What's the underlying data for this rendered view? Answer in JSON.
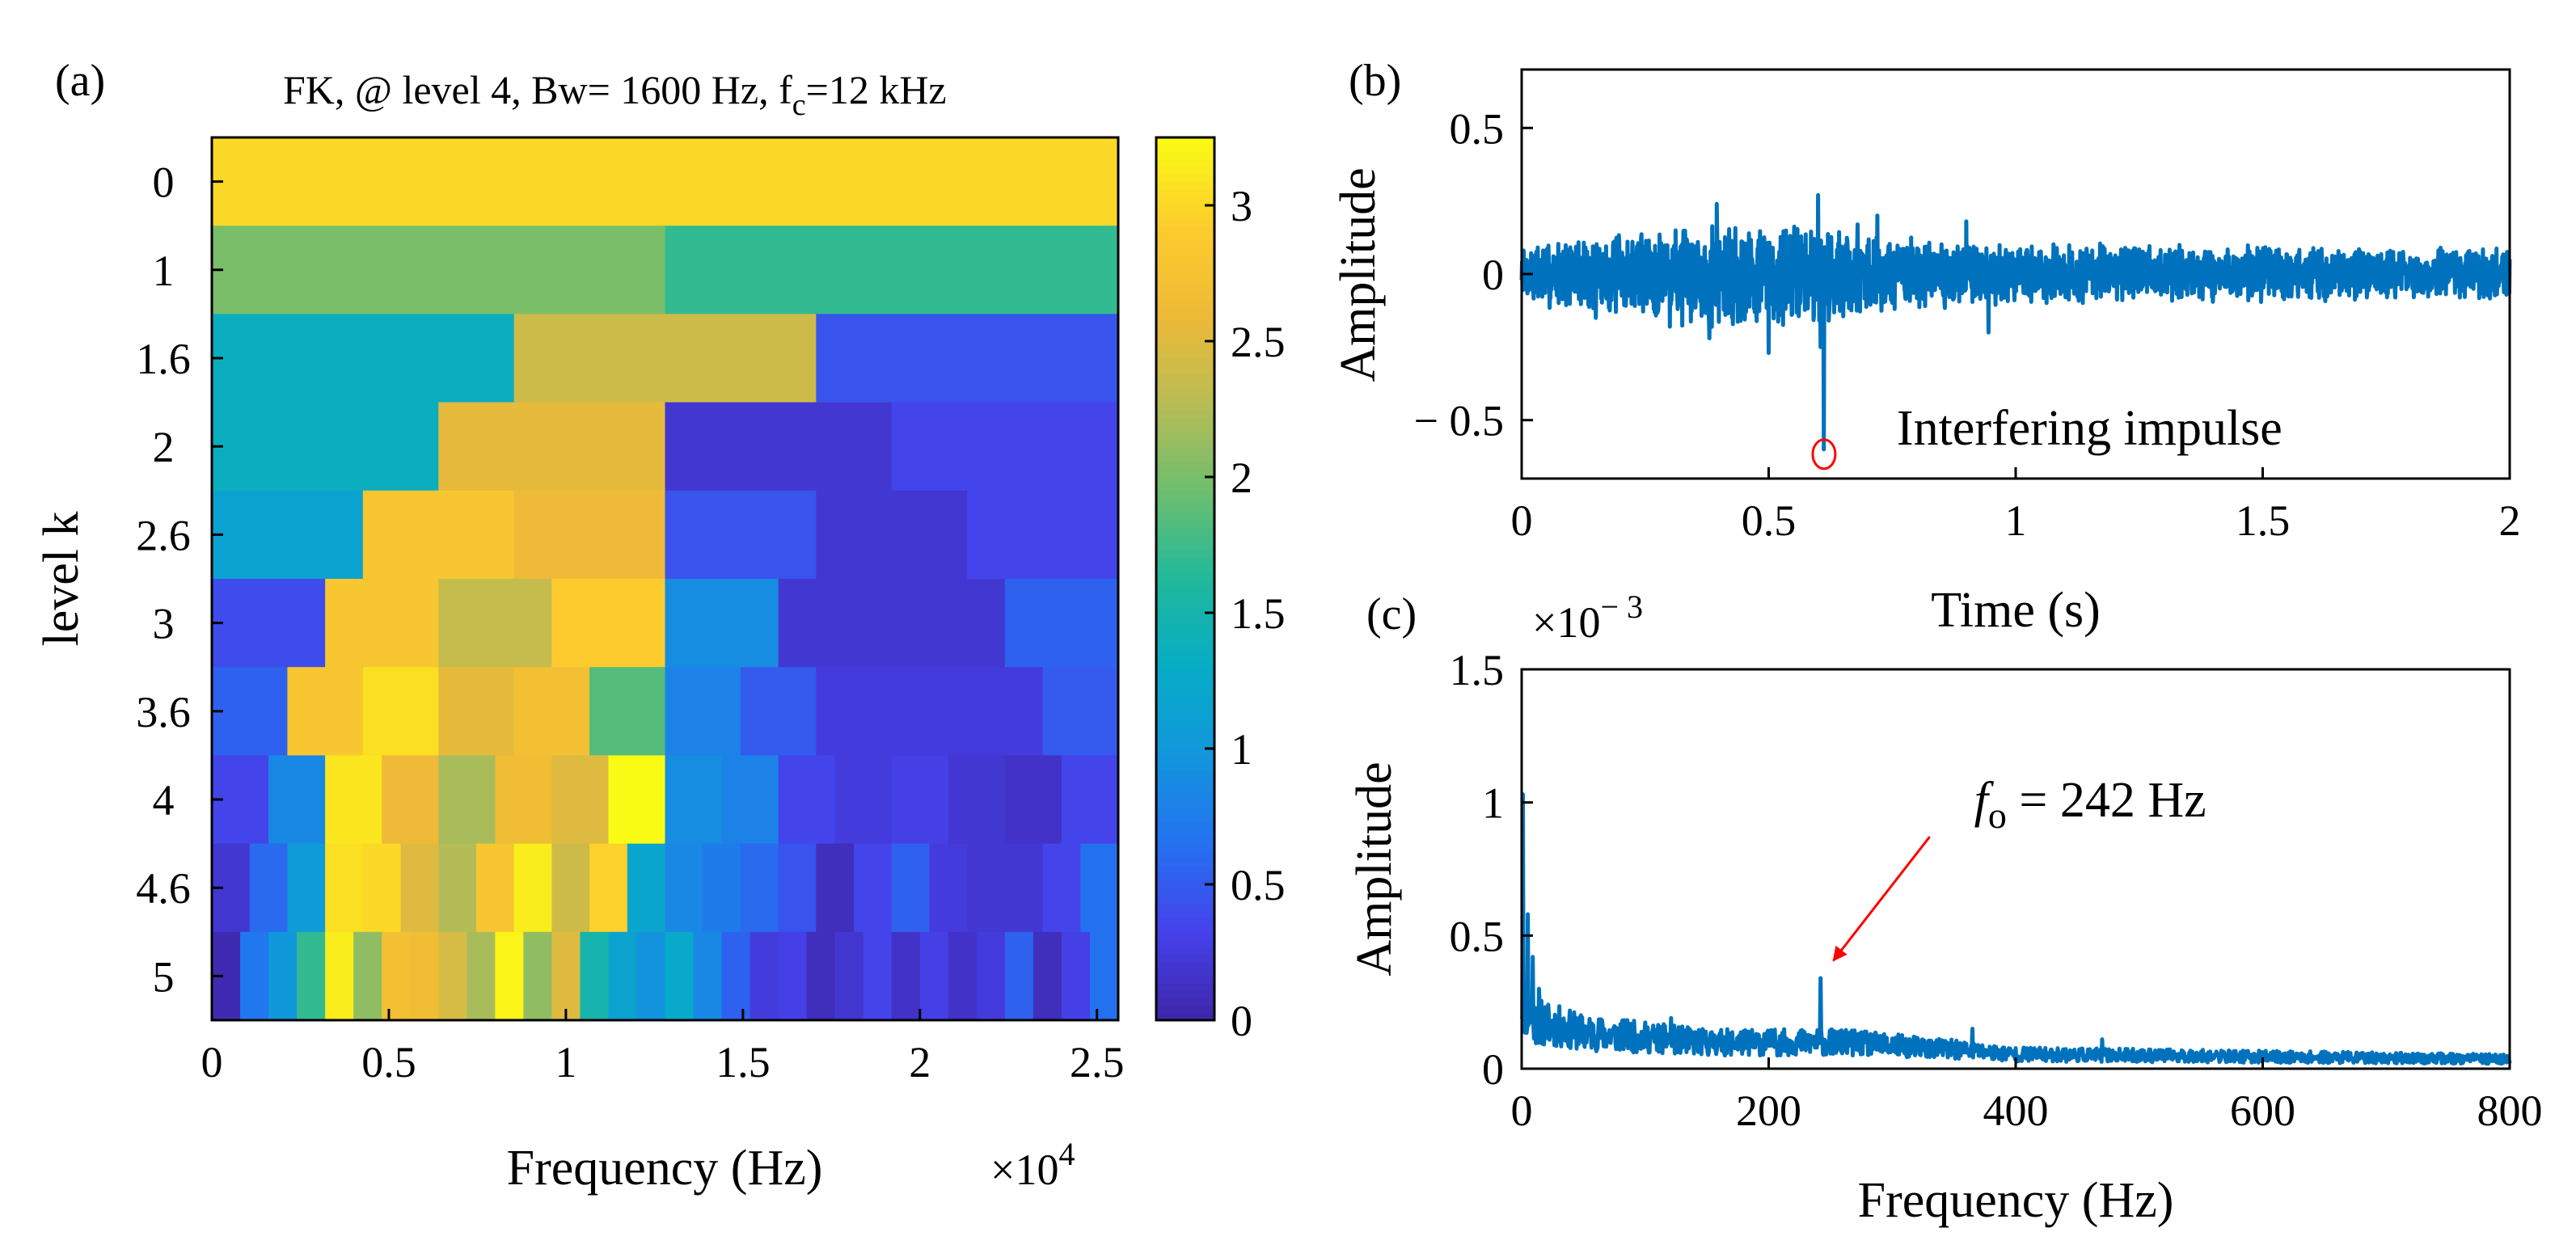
{
  "figure": {
    "colors": {
      "signal": "#0072BD",
      "annotation_red": "#ff0000",
      "axis": "#000000"
    }
  },
  "chart_data": [
    {
      "id": "a",
      "panel_label": "(a)",
      "type": "heatmap",
      "title_prefix": "FK, @ level 4, Bw= 1600 Hz, f",
      "title_subscript": "c",
      "title_suffix": "=12 kHz",
      "xlabel": "Frequency (Hz)",
      "xmultiplier": "×10",
      "xmultiplier_exp": "4",
      "ylabel": "level k",
      "xlim": [
        0,
        2.56
      ],
      "xticks": [
        0,
        0.5,
        1,
        1.5,
        2,
        2.5
      ],
      "xtick_labels": [
        "0",
        "0.5",
        "1",
        "1.5",
        "2",
        "2.5"
      ],
      "levels": [
        "0",
        "1",
        "1.6",
        "2",
        "2.6",
        "3",
        "3.6",
        "4",
        "4.6",
        "5"
      ],
      "colorbar": {
        "min": 0,
        "max": 3.25,
        "ticks": [
          0,
          0.5,
          1,
          1.5,
          2,
          2.5,
          3
        ],
        "tick_labels": [
          "0",
          "0.5",
          "1",
          "1.5",
          "2",
          "2.5",
          "3"
        ]
      },
      "rows": [
        [
          3.0
        ],
        [
          2.0,
          1.7
        ],
        [
          1.35,
          2.4,
          0.45
        ],
        [
          1.35,
          2.55,
          0.2,
          0.35
        ],
        [
          1.15,
          2.8,
          2.6,
          0.45,
          0.2,
          0.35
        ],
        [
          0.4,
          2.8,
          2.35,
          2.9,
          0.9,
          0.2,
          0.2,
          0.55
        ],
        [
          0.55,
          2.8,
          3.05,
          2.55,
          2.7,
          1.85,
          0.8,
          0.5,
          0.25,
          0.25,
          0.25,
          0.5
        ],
        [
          0.35,
          0.85,
          3.1,
          2.6,
          2.2,
          2.65,
          2.5,
          3.25,
          0.9,
          0.8,
          0.35,
          0.25,
          0.3,
          0.2,
          0.15,
          0.35
        ],
        [
          0.2,
          0.6,
          1.05,
          3.05,
          3.0,
          2.5,
          2.25,
          2.8,
          3.15,
          2.4,
          2.95,
          1.2,
          0.85,
          0.75,
          0.6,
          0.45,
          0.1,
          0.35,
          0.55,
          0.25,
          0.2,
          0.2,
          0.35,
          0.65
        ],
        [
          0.05,
          0.7,
          1.0,
          1.7,
          3.15,
          2.1,
          2.7,
          2.65,
          2.45,
          2.2,
          3.2,
          2.1,
          2.5,
          1.5,
          1.15,
          0.95,
          1.25,
          0.85,
          0.55,
          0.25,
          0.3,
          0.1,
          0.2,
          0.35,
          0.15,
          0.3,
          0.15,
          0.25,
          0.55,
          0.1,
          0.3,
          0.65
        ]
      ]
    },
    {
      "id": "b",
      "panel_label": "(b)",
      "type": "line",
      "xlabel": "Time (s)",
      "ylabel": "Amplitude",
      "xlim": [
        0,
        2
      ],
      "ylim": [
        -0.7,
        0.7
      ],
      "xticks": [
        0,
        0.5,
        1,
        1.5,
        2
      ],
      "xtick_labels": [
        "0",
        "0.5",
        "1",
        "1.5",
        "2"
      ],
      "yticks": [
        -0.5,
        0,
        0.5
      ],
      "ytick_labels": [
        "− 0.5",
        "0",
        "0.5"
      ],
      "noise_envelope": [
        {
          "t": 0.0,
          "amp": 0.11
        },
        {
          "t": 0.2,
          "amp": 0.15
        },
        {
          "t": 0.4,
          "amp": 0.2
        },
        {
          "t": 0.6,
          "amp": 0.18
        },
        {
          "t": 0.8,
          "amp": 0.13
        },
        {
          "t": 1.0,
          "amp": 0.11
        },
        {
          "t": 1.5,
          "amp": 0.1
        },
        {
          "t": 2.0,
          "amp": 0.09
        }
      ],
      "spikes": [
        {
          "t": 0.612,
          "value": -0.6
        },
        {
          "t": 0.6,
          "value": 0.27
        },
        {
          "t": 0.605,
          "value": -0.25
        },
        {
          "t": 0.395,
          "value": 0.24
        },
        {
          "t": 0.38,
          "value": -0.22
        },
        {
          "t": 0.5,
          "value": -0.27
        },
        {
          "t": 0.945,
          "value": -0.2
        },
        {
          "t": 0.9,
          "value": 0.18
        },
        {
          "t": 0.72,
          "value": 0.2
        },
        {
          "t": 0.68,
          "value": 0.17
        },
        {
          "t": 0.3,
          "value": -0.18
        },
        {
          "t": 0.15,
          "value": -0.15
        }
      ],
      "marker": {
        "t": 0.612,
        "value": -0.6
      },
      "annotation": "Interfering impulse"
    },
    {
      "id": "c",
      "panel_label": "(c)",
      "type": "line",
      "xlabel": "Frequency (Hz)",
      "ylabel": "Amplitude",
      "ymultiplier": "×10",
      "ymultiplier_exp": "− 3",
      "xlim": [
        0,
        800
      ],
      "ylim": [
        0,
        1.5
      ],
      "xticks": [
        0,
        200,
        400,
        600,
        800
      ],
      "xtick_labels": [
        "0",
        "200",
        "400",
        "600",
        "800"
      ],
      "yticks": [
        0,
        0.5,
        1,
        1.5
      ],
      "ytick_labels": [
        "0",
        "0.5",
        "1",
        "1.5"
      ],
      "baseline": [
        {
          "f": 0,
          "value": 0.28
        },
        {
          "f": 10,
          "value": 0.2
        },
        {
          "f": 50,
          "value": 0.15
        },
        {
          "f": 150,
          "value": 0.11
        },
        {
          "f": 260,
          "value": 0.11
        },
        {
          "f": 350,
          "value": 0.08
        },
        {
          "f": 400,
          "value": 0.06
        },
        {
          "f": 600,
          "value": 0.05
        },
        {
          "f": 800,
          "value": 0.04
        }
      ],
      "peaks": [
        {
          "f": 1,
          "value": 1.03
        },
        {
          "f": 5,
          "value": 0.58
        },
        {
          "f": 9,
          "value": 0.42
        },
        {
          "f": 14,
          "value": 0.3
        },
        {
          "f": 242,
          "value": 0.34
        },
        {
          "f": 121,
          "value": 0.19
        },
        {
          "f": 365,
          "value": 0.15
        },
        {
          "f": 470,
          "value": 0.11
        }
      ],
      "annotation_symbol": "f",
      "annotation_sub": "o",
      "annotation_text": " = 242 Hz",
      "annotation_target": {
        "f": 242,
        "value": 0.34
      }
    }
  ]
}
